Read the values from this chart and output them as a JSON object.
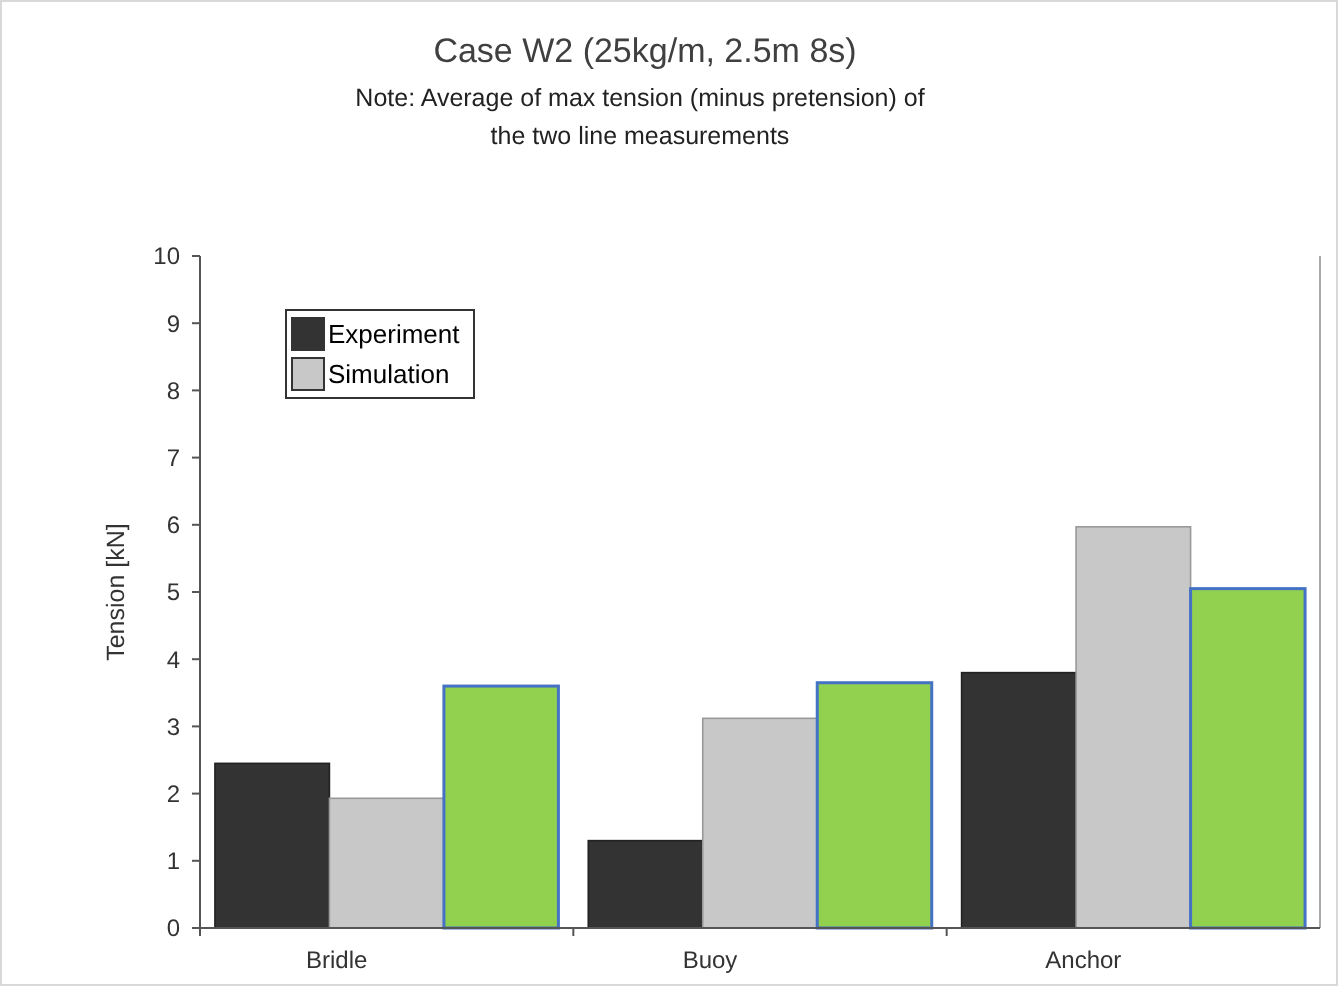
{
  "chart_data": {
    "type": "bar",
    "title": "Case W2 (25kg/m, 2.5m 8s)",
    "subtitle": "Note: Average of max tension (minus pretension) of the two line measurements",
    "ylabel": "Tension [kN]",
    "categories": [
      "Bridle",
      "Buoy",
      "Anchor"
    ],
    "series": [
      {
        "name": "Experiment",
        "color": "#333333",
        "values": [
          2.45,
          1.3,
          3.8
        ]
      },
      {
        "name": "Simulation",
        "color": "#c8c8c8",
        "values": [
          1.93,
          3.12,
          5.97
        ]
      },
      {
        "color": "#92d050",
        "values": [
          3.6,
          3.65,
          5.05
        ]
      }
    ],
    "ylim": [
      0,
      10
    ],
    "yticks": [
      0,
      1,
      2,
      3,
      4,
      5,
      6,
      7,
      8,
      9,
      10
    ],
    "grid": false,
    "legend": "top left"
  }
}
